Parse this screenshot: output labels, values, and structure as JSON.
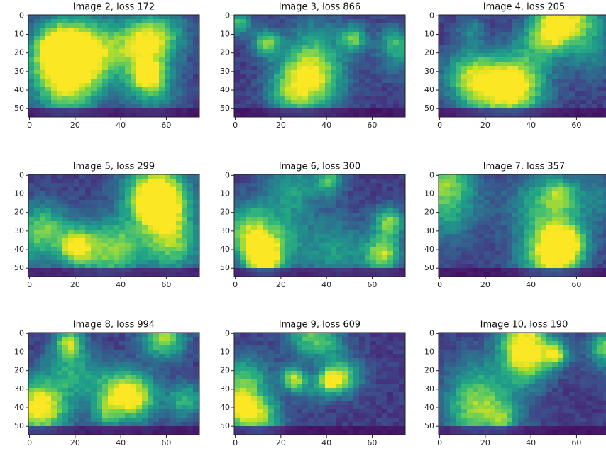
{
  "chart_data": [
    {
      "type": "heatmap",
      "title": "Image 2, loss 172",
      "xlim": [
        -0.5,
        74.5
      ],
      "ylim": [
        54.5,
        -0.5
      ],
      "xticks": [
        0,
        20,
        40,
        60
      ],
      "yticks": [
        0,
        10,
        20,
        30,
        40,
        50
      ]
    },
    {
      "type": "heatmap",
      "title": "Image 3, loss 866",
      "xlim": [
        -0.5,
        74.5
      ],
      "ylim": [
        54.5,
        -0.5
      ],
      "xticks": [
        0,
        20,
        40,
        60
      ],
      "yticks": [
        0,
        10,
        20,
        30,
        40,
        50
      ]
    },
    {
      "type": "heatmap",
      "title": "Image 4, loss 205",
      "xlim": [
        -0.5,
        74.5
      ],
      "ylim": [
        54.5,
        -0.5
      ],
      "xticks": [
        0,
        20,
        40,
        60
      ],
      "yticks": [
        0,
        10,
        20,
        30,
        40,
        50
      ]
    },
    {
      "type": "heatmap",
      "title": "Image 5, loss 299",
      "xlim": [
        -0.5,
        74.5
      ],
      "ylim": [
        54.5,
        -0.5
      ],
      "xticks": [
        0,
        20,
        40,
        60
      ],
      "yticks": [
        0,
        10,
        20,
        30,
        40,
        50
      ]
    },
    {
      "type": "heatmap",
      "title": "Image 6, loss 300",
      "xlim": [
        -0.5,
        74.5
      ],
      "ylim": [
        54.5,
        -0.5
      ],
      "xticks": [
        0,
        20,
        40,
        60
      ],
      "yticks": [
        0,
        10,
        20,
        30,
        40,
        50
      ]
    },
    {
      "type": "heatmap",
      "title": "Image 7, loss 357",
      "xlim": [
        -0.5,
        74.5
      ],
      "ylim": [
        54.5,
        -0.5
      ],
      "xticks": [
        0,
        20,
        40,
        60
      ],
      "yticks": [
        0,
        10,
        20,
        30,
        40,
        50
      ]
    },
    {
      "type": "heatmap",
      "title": "Image 8, loss 994",
      "xlim": [
        -0.5,
        74.5
      ],
      "ylim": [
        54.5,
        -0.5
      ],
      "xticks": [
        0,
        20,
        40,
        60
      ],
      "yticks": [
        0,
        10,
        20,
        30,
        40,
        50
      ]
    },
    {
      "type": "heatmap",
      "title": "Image 9, loss 609",
      "xlim": [
        -0.5,
        74.5
      ],
      "ylim": [
        54.5,
        -0.5
      ],
      "xticks": [
        0,
        20,
        40,
        60
      ],
      "yticks": [
        0,
        10,
        20,
        30,
        40,
        50
      ]
    },
    {
      "type": "heatmap",
      "title": "Image 10, loss 190",
      "xlim": [
        -0.5,
        74.5
      ],
      "ylim": [
        54.5,
        -0.5
      ],
      "xticks": [
        0,
        20,
        40,
        60
      ],
      "yticks": [
        0,
        10,
        20,
        30,
        40,
        50
      ]
    }
  ]
}
